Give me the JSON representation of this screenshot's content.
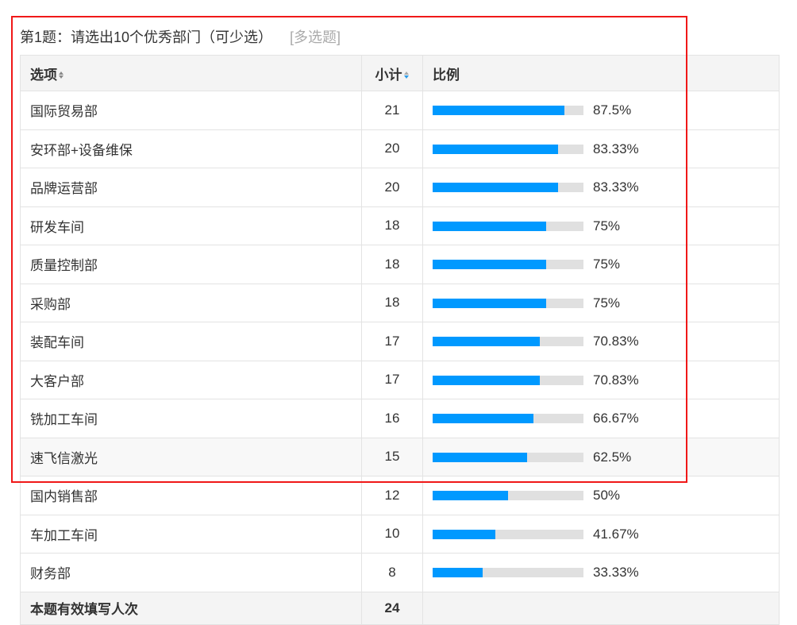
{
  "question": {
    "title": "第1题：请选出10个优秀部门（可少选）",
    "type": "[多选题]"
  },
  "table": {
    "headers": {
      "option": "选项",
      "count": "小计",
      "ratio": "比例"
    },
    "rows": [
      {
        "option": "国际贸易部",
        "count": "21",
        "ratio": "87.5%",
        "value": 87.5
      },
      {
        "option": "安环部+设备维保",
        "count": "20",
        "ratio": "83.33%",
        "value": 83.33
      },
      {
        "option": "品牌运营部",
        "count": "20",
        "ratio": "83.33%",
        "value": 83.33
      },
      {
        "option": "研发车间",
        "count": "18",
        "ratio": "75%",
        "value": 75
      },
      {
        "option": "质量控制部",
        "count": "18",
        "ratio": "75%",
        "value": 75
      },
      {
        "option": "采购部",
        "count": "18",
        "ratio": "75%",
        "value": 75
      },
      {
        "option": "装配车间",
        "count": "17",
        "ratio": "70.83%",
        "value": 70.83
      },
      {
        "option": "大客户部",
        "count": "17",
        "ratio": "70.83%",
        "value": 70.83
      },
      {
        "option": "铣加工车间",
        "count": "16",
        "ratio": "66.67%",
        "value": 66.67
      },
      {
        "option": "速飞信激光",
        "count": "15",
        "ratio": "62.5%",
        "value": 62.5
      },
      {
        "option": "国内销售部",
        "count": "12",
        "ratio": "50%",
        "value": 50
      },
      {
        "option": "车加工车间",
        "count": "10",
        "ratio": "41.67%",
        "value": 41.67
      },
      {
        "option": "财务部",
        "count": "8",
        "ratio": "33.33%",
        "value": 33.33
      }
    ],
    "total": {
      "label": "本题有效填写人次",
      "count": "24"
    }
  },
  "colors": {
    "bar_fill": "#0099ff",
    "bar_track": "#e0e0e0",
    "highlight_box": "#f01818"
  }
}
